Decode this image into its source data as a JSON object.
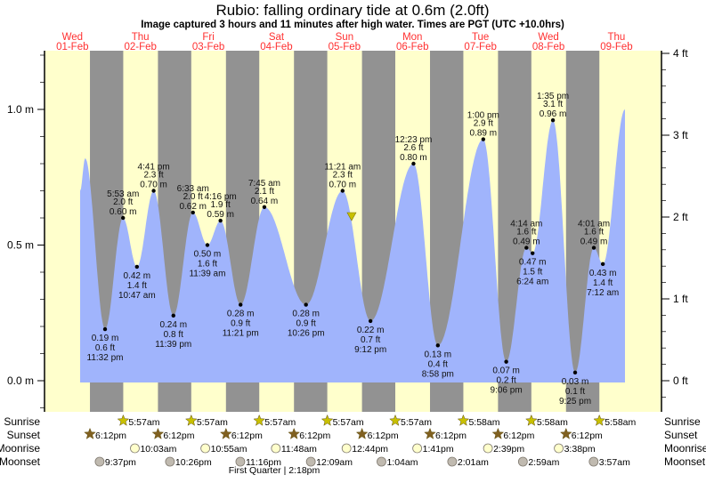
{
  "chart_data": {
    "type": "area",
    "title": "Rubio: falling  ordinary tide at 0.6m (2.0ft)",
    "subtitle": "Image captured 3 hours and 11 minutes after high water. Times are PGT (UTC +10.0hrs)",
    "days": [
      {
        "weekday": "Wed",
        "date": "01-Feb"
      },
      {
        "weekday": "Thu",
        "date": "02-Feb"
      },
      {
        "weekday": "Fri",
        "date": "03-Feb"
      },
      {
        "weekday": "Sat",
        "date": "04-Feb"
      },
      {
        "weekday": "Sun",
        "date": "05-Feb"
      },
      {
        "weekday": "Mon",
        "date": "06-Feb"
      },
      {
        "weekday": "Tue",
        "date": "07-Feb"
      },
      {
        "weekday": "Wed",
        "date": "08-Feb"
      },
      {
        "weekday": "Thu",
        "date": "09-Feb"
      }
    ],
    "left_axis": {
      "unit": "m",
      "ylim": [
        -0.1,
        1.23
      ],
      "ticks": [
        "0.0 m",
        "0.5 m",
        "1.0 m"
      ],
      "tick_values": [
        0,
        0.5,
        1.0
      ]
    },
    "right_axis": {
      "unit": "ft",
      "ticks": [
        "0 ft",
        "1 ft",
        "2 ft",
        "3 ft",
        "4 ft"
      ],
      "tick_values": [
        0,
        1,
        2,
        3,
        4
      ]
    },
    "curve_start": {
      "date": "01-Feb",
      "time": "2:45 pm",
      "m": 0.7
    },
    "curve_end": {
      "date": "09-Feb",
      "time": "3:00 pm",
      "m": 1.0
    },
    "extremes": [
      {
        "date": "01-Feb",
        "time": "4:30 pm",
        "m": 0.82,
        "labeled": false,
        "type": "high"
      },
      {
        "date": "01-Feb",
        "time": "11:32 pm",
        "m": 0.19,
        "m_label": "0.19 m",
        "ft_label": "0.6 ft",
        "type": "low",
        "labeled": true
      },
      {
        "date": "02-Feb",
        "time": "5:53 am",
        "m": 0.6,
        "m_label": "0.60 m",
        "ft_label": "2.0 ft",
        "type": "high",
        "labeled": true
      },
      {
        "date": "02-Feb",
        "time": "10:47 am",
        "m": 0.42,
        "m_label": "0.42 m",
        "ft_label": "1.4 ft",
        "type": "low",
        "labeled": true
      },
      {
        "date": "02-Feb",
        "time": "4:41 pm",
        "m": 0.7,
        "m_label": "0.70 m",
        "ft_label": "2.3 ft",
        "type": "high",
        "labeled": true
      },
      {
        "date": "02-Feb",
        "time": "11:39 pm",
        "m": 0.24,
        "m_label": "0.24 m",
        "ft_label": "0.8 ft",
        "type": "low",
        "labeled": true
      },
      {
        "date": "03-Feb",
        "time": "6:33 am",
        "m": 0.62,
        "m_label": "0.62 m",
        "ft_label": "2.0 ft",
        "type": "high",
        "labeled": true
      },
      {
        "date": "03-Feb",
        "time": "11:39 am",
        "m": 0.5,
        "m_label": "0.50 m",
        "ft_label": "1.6 ft",
        "type": "low",
        "labeled": true
      },
      {
        "date": "03-Feb",
        "time": "4:16 pm",
        "m": 0.59,
        "m_label": "0.59 m",
        "ft_label": "1.9 ft",
        "type": "high",
        "labeled": true
      },
      {
        "date": "03-Feb",
        "time": "11:21 pm",
        "m": 0.28,
        "m_label": "0.28 m",
        "ft_label": "0.9 ft",
        "type": "low",
        "labeled": true
      },
      {
        "date": "04-Feb",
        "time": "7:45 am",
        "m": 0.64,
        "m_label": "0.64 m",
        "ft_label": "2.1 ft",
        "type": "high",
        "labeled": true
      },
      {
        "date": "04-Feb",
        "time": "10:26 pm",
        "m": 0.28,
        "m_label": "0.28 m",
        "ft_label": "0.9 ft",
        "type": "low",
        "labeled": true
      },
      {
        "date": "05-Feb",
        "time": "11:21 am",
        "m": 0.7,
        "m_label": "0.70 m",
        "ft_label": "2.3 ft",
        "type": "high",
        "labeled": true
      },
      {
        "date": "05-Feb",
        "time": "9:12 pm",
        "m": 0.22,
        "m_label": "0.22 m",
        "ft_label": "0.7 ft",
        "type": "low",
        "labeled": true
      },
      {
        "date": "06-Feb",
        "time": "12:23 pm",
        "m": 0.8,
        "m_label": "0.80 m",
        "ft_label": "2.6 ft",
        "type": "high",
        "labeled": true
      },
      {
        "date": "06-Feb",
        "time": "8:58 pm",
        "m": 0.13,
        "m_label": "0.13 m",
        "ft_label": "0.4 ft",
        "type": "low",
        "labeled": true
      },
      {
        "date": "07-Feb",
        "time": "1:00 pm",
        "m": 0.89,
        "m_label": "0.89 m",
        "ft_label": "2.9 ft",
        "type": "high",
        "labeled": true
      },
      {
        "date": "07-Feb",
        "time": "9:06 pm",
        "m": 0.07,
        "m_label": "0.07 m",
        "ft_label": "0.2 ft",
        "type": "low",
        "labeled": true
      },
      {
        "date": "08-Feb",
        "time": "4:14 am",
        "m": 0.49,
        "m_label": "0.49 m",
        "ft_label": "1.6 ft",
        "type": "high",
        "labeled": true
      },
      {
        "date": "08-Feb",
        "time": "6:24 am",
        "m": 0.47,
        "m_label": "0.47 m",
        "ft_label": "1.5 ft",
        "type": "low",
        "labeled": true
      },
      {
        "date": "08-Feb",
        "time": "1:35 pm",
        "m": 0.96,
        "m_label": "0.96 m",
        "ft_label": "3.1 ft",
        "type": "high",
        "labeled": true
      },
      {
        "date": "08-Feb",
        "time": "9:25 pm",
        "m": 0.03,
        "m_label": "0.03 m",
        "ft_label": "0.1 ft",
        "type": "low",
        "labeled": true
      },
      {
        "date": "09-Feb",
        "time": "4:01 am",
        "m": 0.49,
        "m_label": "0.49 m",
        "ft_label": "1.6 ft",
        "type": "high",
        "labeled": true
      },
      {
        "date": "09-Feb",
        "time": "7:12 am",
        "m": 0.43,
        "m_label": "0.43 m",
        "ft_label": "1.4 ft",
        "type": "low",
        "labeled": true
      }
    ],
    "current": {
      "date": "05-Feb",
      "time": "2:32 pm",
      "m": 0.6
    },
    "grid": false,
    "colors": {
      "water": "#a0b4fc",
      "night": "#929292",
      "day": "#ffffcc",
      "day_labels": "#ff3030",
      "sunrise": "#c8c000",
      "sunset": "#806020",
      "moonrise": "#ffffcc",
      "moonset": "#c0bab0",
      "marker": "#c8c000"
    }
  },
  "rows": {
    "sunrise_label": "Sunrise",
    "sunset_label": "Sunset",
    "moonrise_label": "Moonrise",
    "moonset_label": "Moonset",
    "sunrise": [
      {
        "date": "02-Feb",
        "time": "5:57am"
      },
      {
        "date": "03-Feb",
        "time": "5:57am"
      },
      {
        "date": "04-Feb",
        "time": "5:57am"
      },
      {
        "date": "05-Feb",
        "time": "5:57am"
      },
      {
        "date": "06-Feb",
        "time": "5:57am"
      },
      {
        "date": "07-Feb",
        "time": "5:58am"
      },
      {
        "date": "08-Feb",
        "time": "5:58am"
      },
      {
        "date": "09-Feb",
        "time": "5:58am"
      }
    ],
    "sunset": [
      {
        "date": "01-Feb",
        "time": "6:12pm"
      },
      {
        "date": "02-Feb",
        "time": "6:12pm"
      },
      {
        "date": "03-Feb",
        "time": "6:12pm"
      },
      {
        "date": "04-Feb",
        "time": "6:12pm"
      },
      {
        "date": "05-Feb",
        "time": "6:12pm"
      },
      {
        "date": "06-Feb",
        "time": "6:12pm"
      },
      {
        "date": "07-Feb",
        "time": "6:12pm"
      },
      {
        "date": "08-Feb",
        "time": "6:12pm"
      }
    ],
    "moonrise": [
      {
        "date": "02-Feb",
        "time": "10:03am"
      },
      {
        "date": "03-Feb",
        "time": "10:55am"
      },
      {
        "date": "04-Feb",
        "time": "11:48am"
      },
      {
        "date": "05-Feb",
        "time": "12:44pm"
      },
      {
        "date": "06-Feb",
        "time": "1:41pm"
      },
      {
        "date": "07-Feb",
        "time": "2:39pm"
      },
      {
        "date": "08-Feb",
        "time": "3:38pm"
      }
    ],
    "moonset": [
      {
        "date": "01-Feb",
        "time": "9:37pm"
      },
      {
        "date": "02-Feb",
        "time": "10:26pm"
      },
      {
        "date": "03-Feb",
        "time": "11:16pm"
      },
      {
        "date": "05-Feb",
        "time": "12:09am"
      },
      {
        "date": "06-Feb",
        "time": "1:04am"
      },
      {
        "date": "07-Feb",
        "time": "2:01am"
      },
      {
        "date": "08-Feb",
        "time": "2:59am"
      },
      {
        "date": "09-Feb",
        "time": "3:57am"
      }
    ],
    "moon_phase": "First Quarter | 2:18pm"
  }
}
